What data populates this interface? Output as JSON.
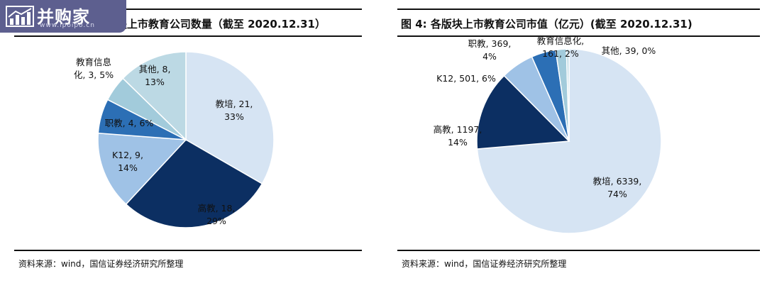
{
  "watermark": {
    "brand": "并购家",
    "url": "www.ipoipo.cn"
  },
  "charts": [
    {
      "title": "图 3: 各版块上市教育公司数量（截至 2020.12.31）",
      "source": "资料来源：wind，国信证券经济研究所整理"
    },
    {
      "title": "图 4: 各版块上市教育公司市值（亿元）(截至 2020.12.31)",
      "source": "资料来源：wind，国信证券经济研究所整理"
    }
  ],
  "chart_data": [
    {
      "type": "pie",
      "title": "图 3: 各版块上市教育公司数量（截至 2020.12.31）",
      "slices": [
        {
          "name": "教培",
          "value": 21,
          "pct": "33%",
          "color": "#d6e4f3"
        },
        {
          "name": "高教",
          "value": 18,
          "pct": "29%",
          "color": "#0c2f62"
        },
        {
          "name": "K12",
          "value": 9,
          "pct": "14%",
          "color": "#9fc2e6"
        },
        {
          "name": "职教",
          "value": 4,
          "pct": "6%",
          "color": "#2c6fb5"
        },
        {
          "name": "教育信息化",
          "value": 3,
          "pct": "5%",
          "color": "#a2cbdb"
        },
        {
          "name": "其他",
          "value": 8,
          "pct": "13%",
          "color": "#bcd9e4"
        }
      ],
      "labels": [
        {
          "line1": "教培, 21,",
          "line2": "33%"
        },
        {
          "line1": "高教, 18,",
          "line2": "29%"
        },
        {
          "line1": "K12, 9,",
          "line2": "14%"
        },
        {
          "line1": "职教, 4, 6%",
          "line2": ""
        },
        {
          "line1": "教育信息",
          "line2": "化, 3, 5%"
        },
        {
          "line1": "其他, 8,",
          "line2": "13%"
        }
      ]
    },
    {
      "type": "pie",
      "title": "图 4: 各版块上市教育公司市值（亿元）(截至 2020.12.31)",
      "slices": [
        {
          "name": "教培",
          "value": 6339,
          "pct": "74%",
          "color": "#d6e4f3"
        },
        {
          "name": "高教",
          "value": 1197,
          "pct": "14%",
          "color": "#0c2f62"
        },
        {
          "name": "K12",
          "value": 501,
          "pct": "6%",
          "color": "#9fc2e6"
        },
        {
          "name": "职教",
          "value": 369,
          "pct": "4%",
          "color": "#2c6fb5"
        },
        {
          "name": "教育信息化",
          "value": 161,
          "pct": "2%",
          "color": "#a2cbdb"
        },
        {
          "name": "其他",
          "value": 39,
          "pct": "0%",
          "color": "#bcd9e4"
        }
      ],
      "labels": [
        {
          "line1": "教培, 6339,",
          "line2": "74%"
        },
        {
          "line1": "高教, 1197,",
          "line2": "14%"
        },
        {
          "line1": "K12, 501, 6%",
          "line2": ""
        },
        {
          "line1": "职教, 369,",
          "line2": "4%"
        },
        {
          "line1": "教育信息化,",
          "line2": "161, 2%"
        },
        {
          "line1": "其他, 39, 0%",
          "line2": ""
        }
      ]
    }
  ]
}
